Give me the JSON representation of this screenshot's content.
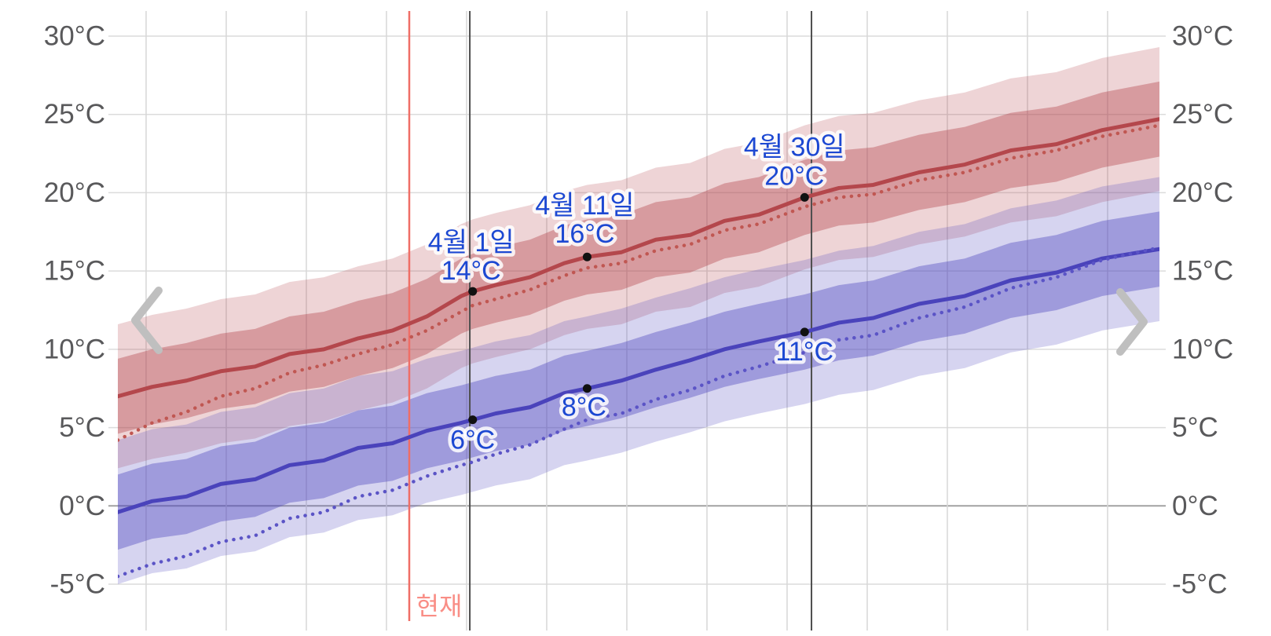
{
  "chart_data": {
    "type": "area",
    "title": "",
    "x_axis": {
      "days_shown": 91,
      "weekly_gridline_first_day": 2.47,
      "weekly_gridline_step_days": 7,
      "weekly_gridline_count": 13,
      "month_boundary_days": [
        30.75,
        60.6
      ]
    },
    "y_axis": {
      "tick_values": [
        30,
        25,
        20,
        15,
        10,
        5,
        0,
        -5
      ],
      "tick_suffix": "°C",
      "min": -5,
      "max": 30,
      "sides": [
        "left",
        "right"
      ]
    },
    "anchor_days": [
      0,
      3,
      6,
      9,
      12,
      15,
      18,
      21,
      24,
      27,
      30,
      31,
      33,
      36,
      39,
      41,
      44,
      47,
      50,
      53,
      56,
      60,
      63,
      66,
      70,
      74,
      78,
      82,
      86,
      91
    ],
    "series": [
      {
        "id": "high_solid",
        "name": "daily-high-average",
        "style": "solid",
        "color": "#b4474c",
        "width": 5,
        "values": [
          7.0,
          7.6,
          8.0,
          8.6,
          8.9,
          9.7,
          10.0,
          10.7,
          11.2,
          12.1,
          13.4,
          13.7,
          14.1,
          14.6,
          15.5,
          15.9,
          16.2,
          17.0,
          17.3,
          18.2,
          18.6,
          19.7,
          20.3,
          20.5,
          21.3,
          21.8,
          22.7,
          23.1,
          24.0,
          24.7
        ],
        "has_band": true,
        "band_rgb": "181,70,77"
      },
      {
        "id": "high_dotted",
        "name": "daily-high-comparison",
        "style": "dotted",
        "color": "#c05752",
        "width": 4.5,
        "values": [
          4.2,
          5.3,
          6.0,
          7.0,
          7.5,
          8.5,
          9.0,
          9.7,
          10.3,
          11.2,
          12.4,
          12.8,
          13.2,
          13.8,
          14.7,
          15.2,
          15.5,
          16.3,
          16.7,
          17.6,
          18.0,
          19.1,
          19.7,
          19.9,
          20.8,
          21.3,
          22.2,
          22.7,
          23.6,
          24.3
        ],
        "has_band": false
      },
      {
        "id": "low_solid",
        "name": "daily-low-average",
        "style": "solid",
        "color": "#4a43bb",
        "width": 5,
        "values": [
          -0.4,
          0.3,
          0.6,
          1.4,
          1.7,
          2.6,
          2.9,
          3.7,
          4.0,
          4.8,
          5.3,
          5.5,
          5.9,
          6.3,
          7.2,
          7.5,
          8.0,
          8.7,
          9.3,
          10.0,
          10.5,
          11.1,
          11.7,
          12.0,
          12.9,
          13.4,
          14.4,
          14.9,
          15.8,
          16.4
        ],
        "has_band": true,
        "band_rgb": "77,71,189"
      },
      {
        "id": "low_dotted",
        "name": "daily-low-comparison",
        "style": "dotted",
        "color": "#5b54c6",
        "width": 4.5,
        "values": [
          -4.5,
          -3.7,
          -3.2,
          -2.3,
          -1.9,
          -0.8,
          -0.4,
          0.6,
          1.0,
          1.9,
          2.6,
          2.8,
          3.3,
          3.9,
          4.9,
          5.5,
          5.9,
          6.8,
          7.4,
          8.3,
          8.9,
          9.8,
          10.6,
          10.9,
          12.0,
          12.7,
          13.9,
          14.6,
          15.7,
          16.5
        ],
        "has_band": false
      }
    ],
    "bands": {
      "inner_offset": 2.4,
      "outer_offset": 4.6,
      "inner_alpha": 0.4,
      "outer_alpha": 0.23
    },
    "points": [
      {
        "series": "high_solid",
        "day": 31,
        "value": 13.7,
        "date_label": "4월 1일",
        "temp_label": "14°C",
        "dx": -2,
        "date_dy": -62,
        "temp_dy": -26
      },
      {
        "series": "high_solid",
        "day": 41,
        "value": 15.9,
        "date_label": "4월 11일",
        "temp_label": "16°C",
        "dx": -3,
        "date_dy": -65,
        "temp_dy": -29
      },
      {
        "series": "high_solid",
        "day": 60,
        "value": 19.7,
        "date_label": "4월 30일",
        "temp_label": "20°C",
        "dx": -13,
        "date_dy": -64,
        "temp_dy": -27
      },
      {
        "series": "low_solid",
        "day": 31,
        "value": 5.5,
        "date_label": "",
        "temp_label": "6°C",
        "dx": 0,
        "temp_dy": 26
      },
      {
        "series": "low_solid",
        "day": 41,
        "value": 7.5,
        "date_label": "",
        "temp_label": "8°C",
        "dx": -4,
        "temp_dy": 24
      },
      {
        "series": "low_solid",
        "day": 60,
        "value": 11.1,
        "date_label": "",
        "temp_label": "11°C",
        "dx": 0,
        "temp_dy": 25
      }
    ],
    "now_line": {
      "day": 25.46,
      "label": "현재",
      "line_color": "#ef6e66",
      "label_color": "#f98e86"
    },
    "colors": {
      "axis_label": "#59595b",
      "grid_vertical": "#d7d7d7",
      "grid_horizontal": "#dcdcdc",
      "grid_zero": "#a2a2a2",
      "grid_month": "#4e4e4e",
      "point_label": "#1c48d2",
      "dot": "#111111",
      "chevron": "#bfbfbf"
    }
  },
  "nav": {
    "prev_icon": "chevron-left",
    "next_icon": "chevron-right"
  }
}
